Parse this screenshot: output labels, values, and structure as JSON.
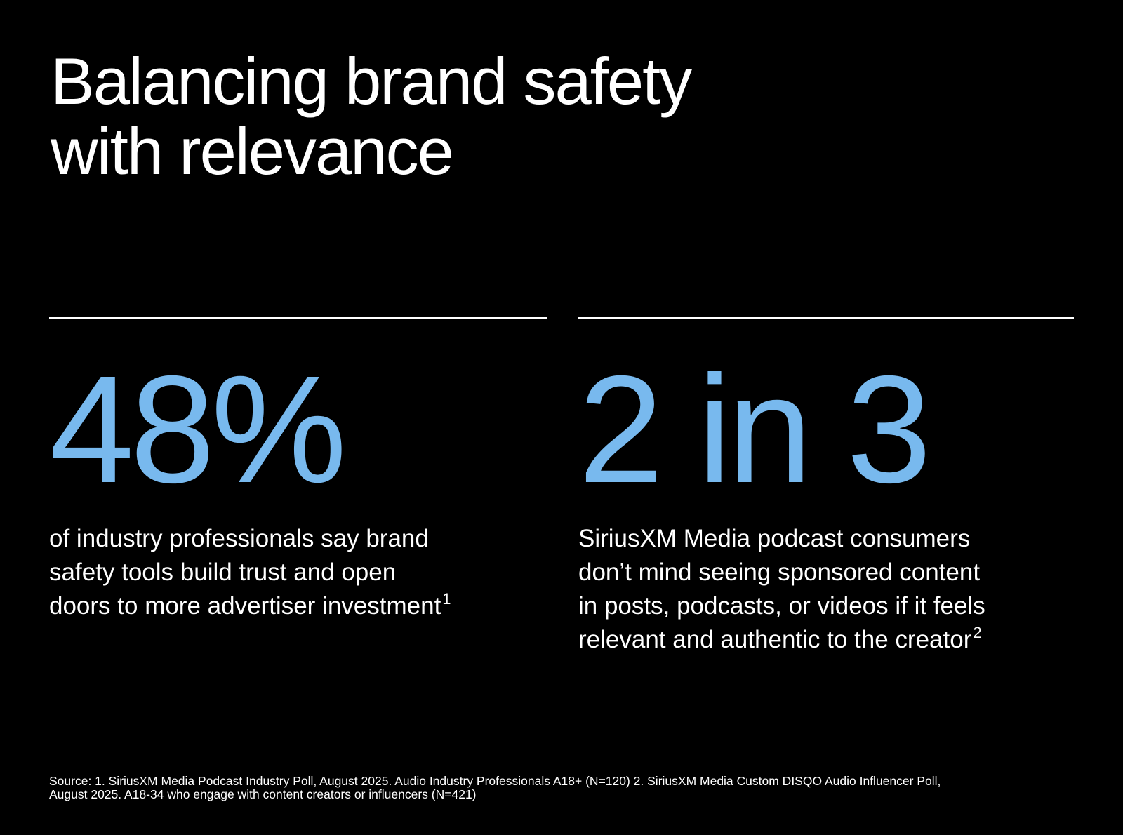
{
  "title": {
    "line1": "Balancing brand safety",
    "line2": "with relevance"
  },
  "stats": [
    {
      "value": "48%",
      "desc_lines": [
        "of industry professionals say brand",
        "safety tools build trust and open",
        "doors to more advertiser investment"
      ],
      "footnote": "1"
    },
    {
      "value": "2 in 3",
      "desc_lines": [
        "SiriusXM Media podcast consumers",
        "don’t mind seeing sponsored content",
        "in posts, podcasts, or videos if it feels",
        "relevant and authentic to the creator"
      ],
      "footnote": "2"
    }
  ],
  "source": {
    "line1": "Source: 1. SiriusXM Media Podcast Industry Poll, August 2025. Audio Industry Professionals A18+ (N=120) 2. SiriusXM Media Custom DISQO Audio Influencer Poll,",
    "line2": "August 2025. A18-34 who engage with content creators or influencers (N=421)"
  },
  "colors": {
    "background": "#000000",
    "text": "#ffffff",
    "accent": "#78b9ee"
  }
}
